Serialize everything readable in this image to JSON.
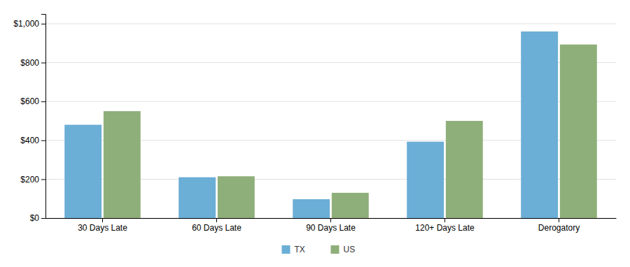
{
  "chart_data": {
    "type": "bar",
    "categories": [
      "30 Days Late",
      "60 Days Late",
      "90 Days Late",
      "120+ Days Late",
      "Derogatory"
    ],
    "series": [
      {
        "name": "TX",
        "color": "#6BAED6",
        "values": [
          480,
          210,
          97,
          393,
          960
        ]
      },
      {
        "name": "US",
        "color": "#8FAF7A",
        "values": [
          550,
          215,
          130,
          500,
          893
        ]
      }
    ],
    "ylim": [
      0,
      1050
    ],
    "yticks": [
      {
        "value": 0,
        "label": "$0"
      },
      {
        "value": 200,
        "label": "$200"
      },
      {
        "value": 400,
        "label": "$400"
      },
      {
        "value": 600,
        "label": "$600"
      },
      {
        "value": 800,
        "label": "$800"
      },
      {
        "value": 1000,
        "label": "$1,000"
      }
    ],
    "grid": true,
    "legend": "bottom"
  }
}
